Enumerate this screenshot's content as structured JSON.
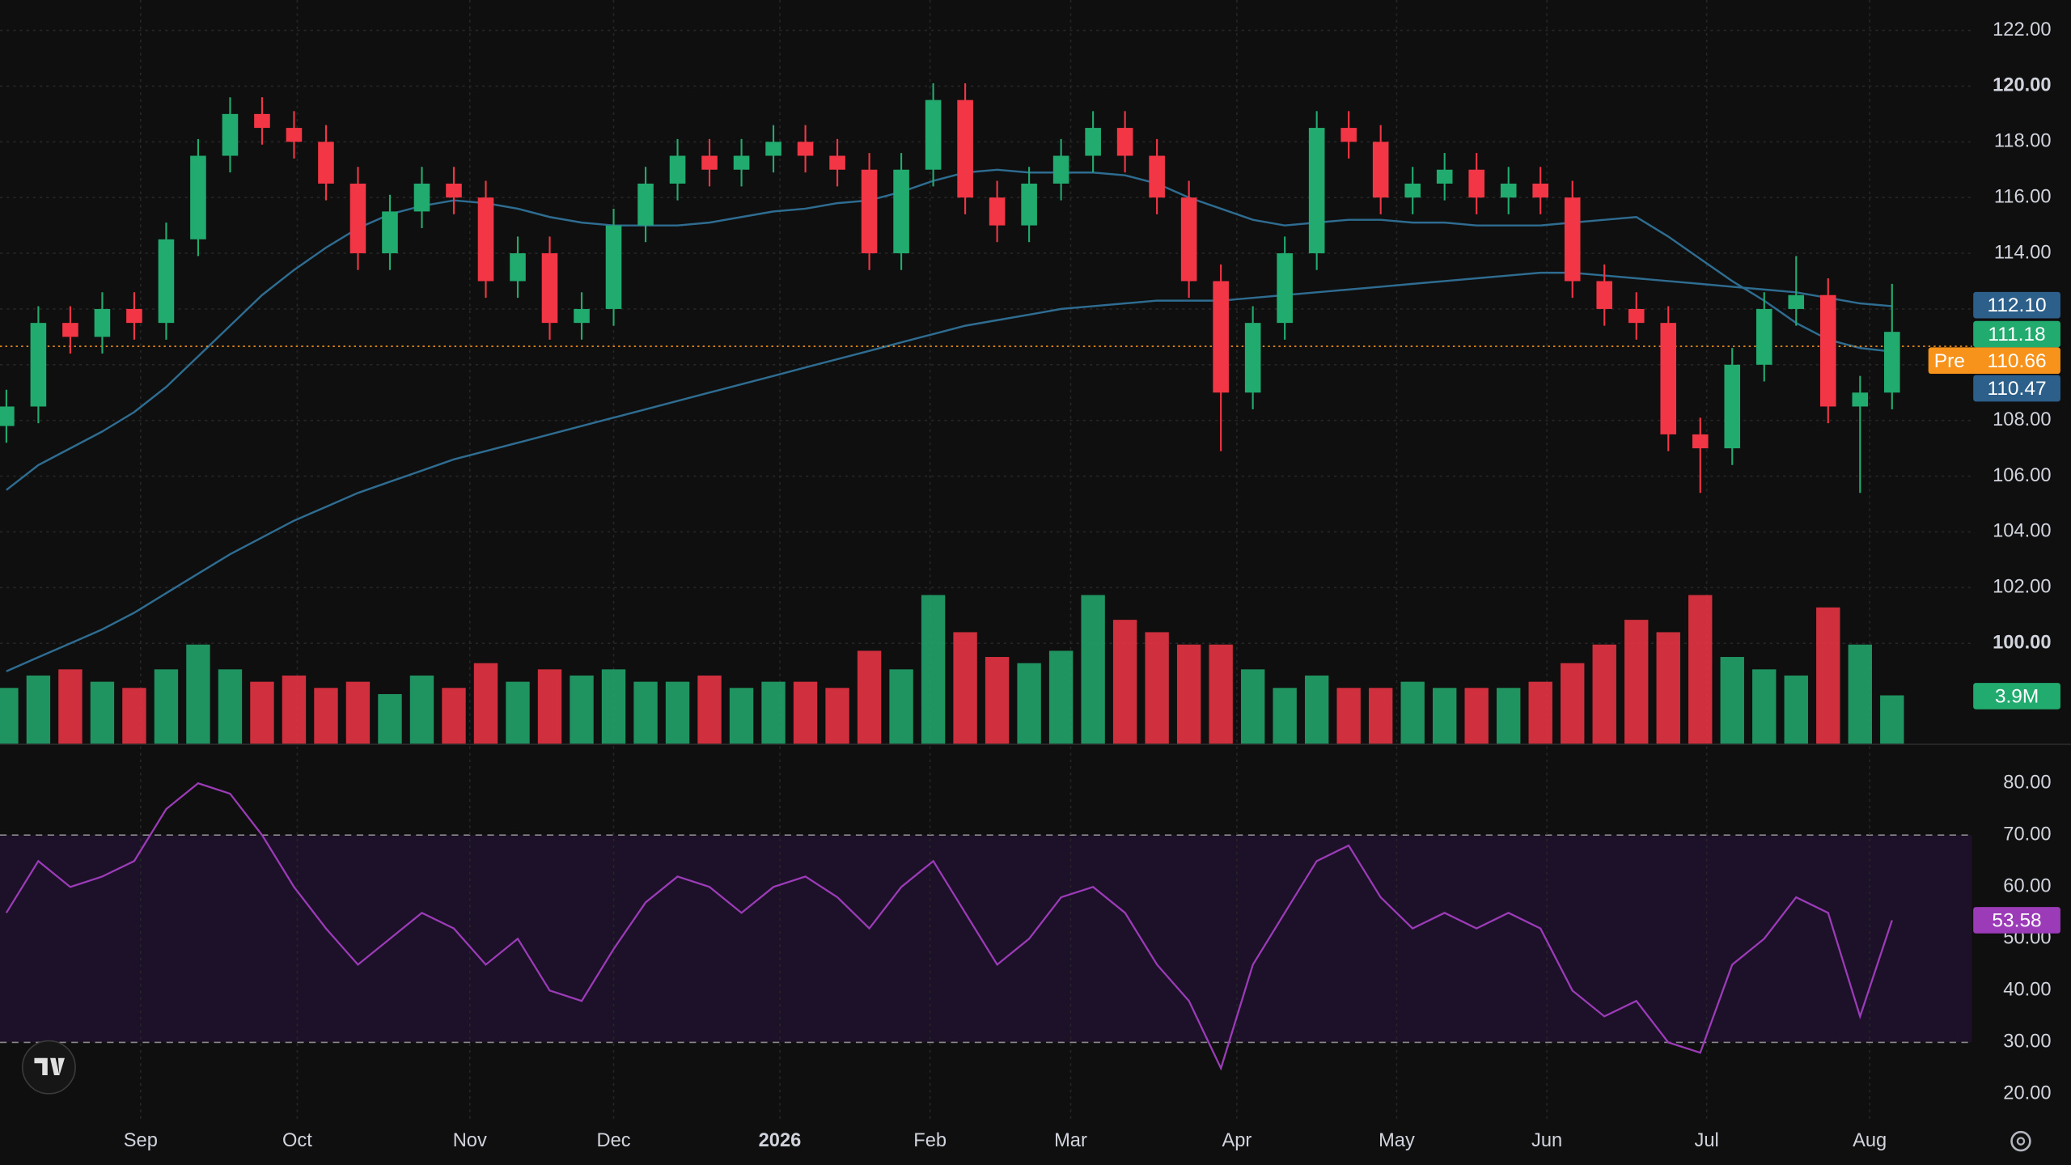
{
  "chart_data": {
    "type": "candlestick",
    "x": [
      0,
      1,
      2,
      3,
      4,
      5,
      6,
      7,
      8,
      9,
      10,
      11,
      12,
      13,
      14,
      15,
      16,
      17,
      18,
      19,
      20,
      21,
      22,
      23,
      24,
      25,
      26,
      27,
      28,
      29,
      30,
      31,
      32,
      33,
      34,
      35,
      36,
      37,
      38,
      39,
      40,
      41,
      42,
      43,
      44,
      45,
      46,
      47,
      48,
      49,
      50,
      51,
      52,
      53,
      54,
      55,
      56,
      57,
      58,
      59
    ],
    "xlim": [
      -0.2,
      61.5
    ],
    "xticks": [
      {
        "value": 4.2,
        "label": "Sep"
      },
      {
        "value": 9.1,
        "label": "Oct"
      },
      {
        "value": 14.5,
        "label": "Nov"
      },
      {
        "value": 19.0,
        "label": "Dec"
      },
      {
        "value": 24.2,
        "label": "2026"
      },
      {
        "value": 28.9,
        "label": "Feb"
      },
      {
        "value": 33.3,
        "label": "Mar"
      },
      {
        "value": 38.5,
        "label": "Apr"
      },
      {
        "value": 43.5,
        "label": "May"
      },
      {
        "value": 48.2,
        "label": "Jun"
      },
      {
        "value": 53.2,
        "label": "Jul"
      },
      {
        "value": 58.3,
        "label": "Aug"
      }
    ],
    "ylim": [
      96.4,
      123.09
    ],
    "yticks": [
      {
        "value": 100,
        "label": "100.00"
      },
      {
        "value": 102,
        "label": "102.00"
      },
      {
        "value": 104,
        "label": "104.00"
      },
      {
        "value": 106,
        "label": "106.00"
      },
      {
        "value": 108,
        "label": "108.00"
      },
      {
        "value": 110,
        "label": "110.00"
      },
      {
        "value": 112,
        "label": "112.00"
      },
      {
        "value": 114,
        "label": "114.00"
      },
      {
        "value": 116,
        "label": "116.00"
      },
      {
        "value": 118,
        "label": "118.00"
      },
      {
        "value": 120,
        "label": "120.00"
      },
      {
        "value": 122,
        "label": "122.00"
      }
    ],
    "grid": true,
    "up_color": "#22ab6e",
    "down_color": "#f23645",
    "open": [
      107.8,
      108.5,
      111.5,
      111,
      112,
      111.5,
      114.5,
      117.5,
      119,
      118.5,
      118,
      116.5,
      114,
      115.5,
      116.5,
      116,
      113,
      114,
      111.5,
      112,
      115,
      116.5,
      117.5,
      117,
      117.5,
      118,
      117.5,
      117,
      114,
      117,
      119.5,
      116,
      115,
      116.5,
      117.5,
      118.5,
      117.5,
      116,
      113,
      109,
      111.5,
      114,
      118.5,
      118,
      116,
      116.5,
      117,
      116,
      116.5,
      116,
      113,
      112,
      111.5,
      107.5,
      107,
      110,
      112,
      112.5,
      108.5,
      109
    ],
    "high": [
      109.1,
      112.1,
      112.1,
      112.6,
      112.6,
      115.1,
      118.1,
      119.6,
      119.6,
      119.1,
      118.6,
      117.1,
      116.1,
      117.1,
      117.1,
      116.6,
      114.6,
      114.6,
      112.6,
      115.6,
      117.1,
      118.1,
      118.1,
      118.1,
      118.6,
      118.6,
      118.1,
      117.6,
      117.6,
      120.1,
      120.1,
      116.6,
      117.1,
      118.1,
      119.1,
      119.1,
      118.1,
      116.6,
      113.6,
      112.1,
      114.6,
      119.1,
      119.1,
      118.6,
      117.1,
      117.6,
      117.6,
      117.1,
      117.1,
      116.6,
      113.6,
      112.6,
      112.1,
      108.1,
      110.6,
      112.6,
      113.9,
      113.1,
      109.6,
      112.9
    ],
    "low": [
      107.2,
      107.9,
      110.4,
      110.4,
      110.9,
      110.9,
      113.9,
      116.9,
      117.9,
      117.4,
      115.9,
      113.4,
      113.4,
      114.9,
      115.4,
      112.4,
      112.4,
      110.9,
      110.9,
      111.4,
      114.4,
      115.9,
      116.4,
      116.4,
      116.9,
      116.9,
      116.4,
      113.4,
      113.4,
      116.4,
      115.4,
      114.4,
      114.4,
      115.9,
      116.9,
      116.9,
      115.4,
      112.4,
      106.9,
      108.4,
      110.9,
      113.4,
      117.4,
      115.4,
      115.4,
      115.9,
      115.4,
      115.4,
      115.4,
      112.4,
      111.4,
      110.9,
      106.9,
      105.4,
      106.4,
      109.4,
      111.4,
      107.9,
      105.4,
      108.4
    ],
    "close": [
      108.5,
      111.5,
      111,
      112,
      111.5,
      114.5,
      117.5,
      119,
      118.5,
      118,
      116.5,
      114,
      115.5,
      116.5,
      116,
      113,
      114,
      111.5,
      112,
      115,
      116.5,
      117.5,
      117,
      117.5,
      118,
      117.5,
      117,
      114,
      117,
      119.5,
      116,
      115,
      116.5,
      117.5,
      118.5,
      117.5,
      116,
      113,
      109,
      111.5,
      114,
      118.5,
      118,
      116,
      116.5,
      117,
      116,
      116.5,
      116,
      113,
      112,
      111.5,
      107.5,
      107,
      110,
      112,
      112.5,
      108.5,
      109,
      111.18
    ],
    "moving_averages": [
      {
        "color": "#2e6d91",
        "values": [
          105.5,
          106.4,
          107,
          107.6,
          108.3,
          109.2,
          110.3,
          111.4,
          112.5,
          113.4,
          114.2,
          114.9,
          115.4,
          115.7,
          115.9,
          115.8,
          115.6,
          115.3,
          115.1,
          115,
          115,
          115,
          115.1,
          115.3,
          115.5,
          115.6,
          115.8,
          115.9,
          116.2,
          116.6,
          116.9,
          117,
          116.9,
          116.9,
          116.9,
          116.8,
          116.5,
          116,
          115.6,
          115.2,
          115,
          115.1,
          115.2,
          115.2,
          115.1,
          115.1,
          115,
          115,
          115,
          115.1,
          115.2,
          115.3,
          114.6,
          113.8,
          113,
          112.3,
          111.5,
          110.9,
          110.6,
          110.47
        ],
        "last_label": "110.47"
      },
      {
        "color": "#2e6d91",
        "values": [
          99.0,
          99.5,
          100,
          100.5,
          101.1,
          101.8,
          102.5,
          103.2,
          103.8,
          104.4,
          104.9,
          105.4,
          105.8,
          106.2,
          106.6,
          106.9,
          107.2,
          107.5,
          107.8,
          108.1,
          108.4,
          108.7,
          109.0,
          109.3,
          109.6,
          109.9,
          110.2,
          110.5,
          110.8,
          111.1,
          111.4,
          111.6,
          111.8,
          112,
          112.1,
          112.2,
          112.3,
          112.3,
          112.3,
          112.4,
          112.5,
          112.6,
          112.7,
          112.8,
          112.9,
          113.0,
          113.1,
          113.2,
          113.3,
          113.3,
          113.2,
          113.1,
          113.0,
          112.9,
          112.8,
          112.7,
          112.6,
          112.4,
          112.2,
          112.1
        ],
        "last_label": "112.10"
      }
    ],
    "last_price": 111.18,
    "premarket": {
      "label": "Pre",
      "value": 110.66,
      "color": "#f7931a"
    },
    "volume": {
      "values": [
        4.5,
        5.5,
        6,
        5,
        4.5,
        6,
        8,
        6,
        5,
        5.5,
        4.5,
        5,
        4,
        5.5,
        4.5,
        6.5,
        5,
        6,
        5.5,
        6,
        5,
        5,
        5.5,
        4.5,
        5,
        5,
        4.5,
        7.5,
        6,
        12,
        9,
        7,
        6.5,
        7.5,
        12,
        10,
        9,
        8,
        8,
        6,
        4.5,
        5.5,
        4.5,
        4.5,
        5,
        4.5,
        4.5,
        4.5,
        5,
        6.5,
        8,
        10,
        9,
        12,
        7,
        6,
        5.5,
        11,
        8,
        3.9
      ],
      "lim": [
        0,
        16
      ],
      "last_label": "3.9M"
    },
    "rsi": {
      "color": "#9c3bb8",
      "values": [
        55,
        65,
        60,
        62,
        65,
        75,
        80,
        78,
        70,
        60,
        52,
        45,
        50,
        55,
        52,
        45,
        50,
        40,
        38,
        48,
        57,
        62,
        60,
        55,
        60,
        62,
        58,
        52,
        60,
        65,
        55,
        45,
        50,
        58,
        60,
        55,
        45,
        38,
        25,
        45,
        55,
        65,
        68,
        58,
        52,
        55,
        52,
        55,
        52,
        40,
        35,
        38,
        30,
        28,
        45,
        50,
        58,
        55,
        35,
        53.58
      ],
      "ylim": [
        15,
        85
      ],
      "band": [
        30,
        70
      ],
      "yticks": [
        {
          "value": 20,
          "label": "20.00"
        },
        {
          "value": 30,
          "label": "30.00"
        },
        {
          "value": 40,
          "label": "40.00"
        },
        {
          "value": 50,
          "label": "50.00"
        },
        {
          "value": 60,
          "label": "60.00"
        },
        {
          "value": 70,
          "label": "70.00"
        },
        {
          "value": 80,
          "label": "80.00"
        }
      ]
    }
  }
}
